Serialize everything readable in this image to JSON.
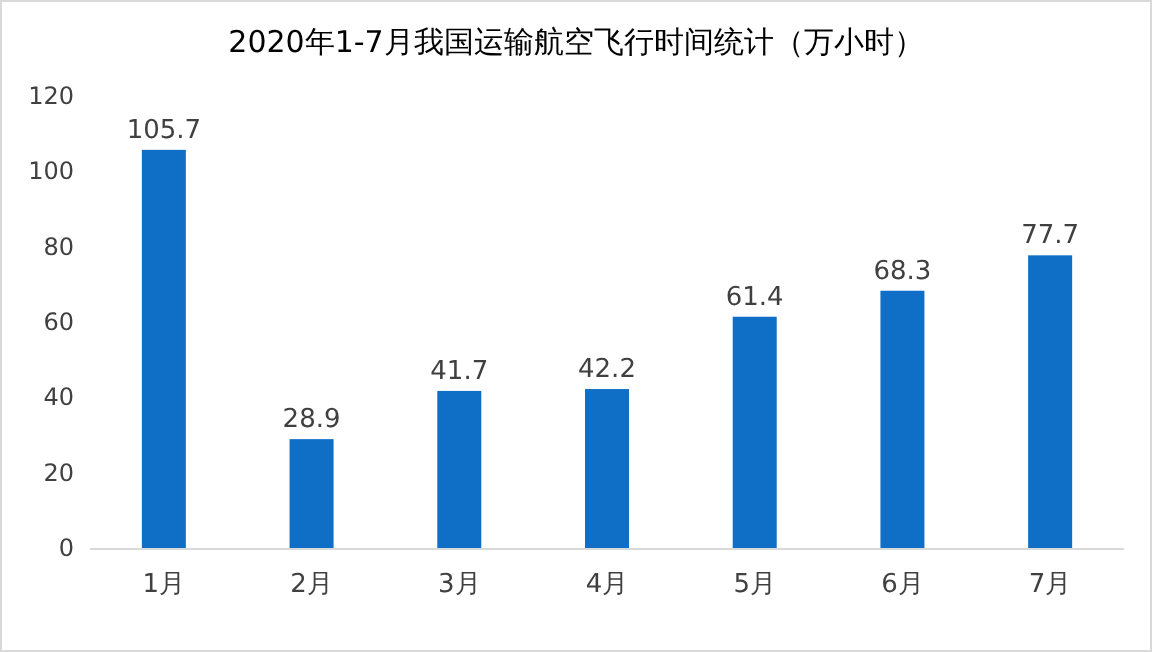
{
  "chart_data": {
    "type": "bar",
    "title": "2020年1-7月我国运输航空飞行时间统计（万小时）",
    "categories": [
      "1月",
      "2月",
      "3月",
      "4月",
      "5月",
      "6月",
      "7月"
    ],
    "values": [
      105.7,
      28.9,
      41.7,
      42.2,
      61.4,
      68.3,
      77.7
    ],
    "color": "#0f6fc6",
    "ylim": [
      0,
      120
    ],
    "yticks": [
      0,
      20,
      40,
      60,
      80,
      100,
      120
    ],
    "data_labels": true
  }
}
